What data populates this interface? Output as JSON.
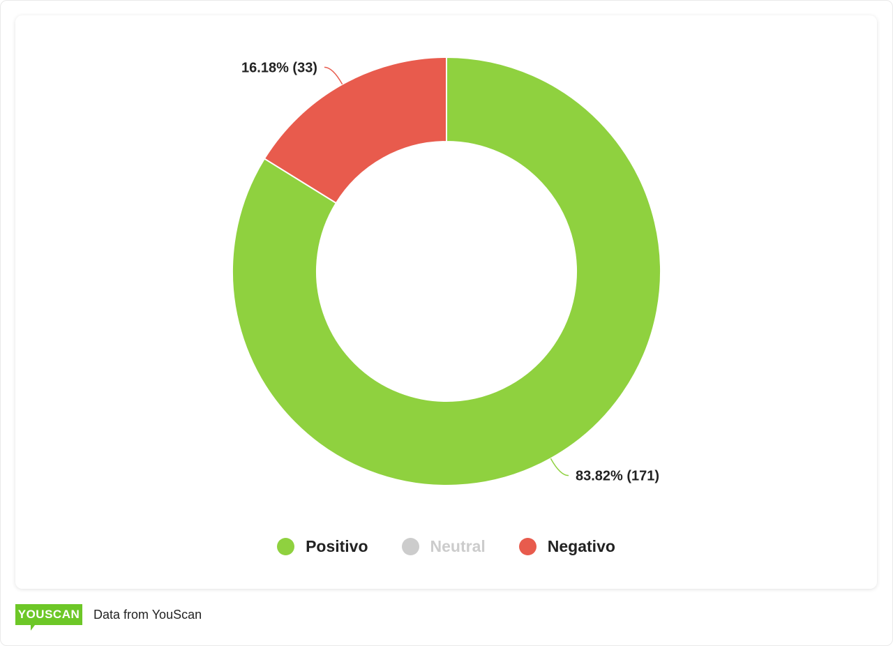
{
  "chart_data": {
    "type": "pie",
    "donut": true,
    "title": "",
    "slices": [
      {
        "name": "Positivo",
        "value": 171,
        "percent": 83.82,
        "label": "83.82% (171)",
        "color": "#8fd13f"
      },
      {
        "name": "Neutral",
        "value": 0,
        "percent": 0,
        "label": "",
        "color": "#cccccc",
        "hidden": true
      },
      {
        "name": "Negativo",
        "value": 33,
        "percent": 16.18,
        "label": "16.18% (33)",
        "color": "#e85b4d"
      }
    ],
    "legend_position": "bottom-center"
  },
  "legend": {
    "items": [
      {
        "label": "Positivo",
        "color": "#8fd13f"
      },
      {
        "label": "Neutral",
        "color": "#cccccc",
        "disabled": true
      },
      {
        "label": "Negativo",
        "color": "#e85b4d"
      }
    ]
  },
  "footer": {
    "logo_text": "YOUSCAN",
    "logo_color": "#6dc727",
    "source_text": "Data from YouScan"
  }
}
